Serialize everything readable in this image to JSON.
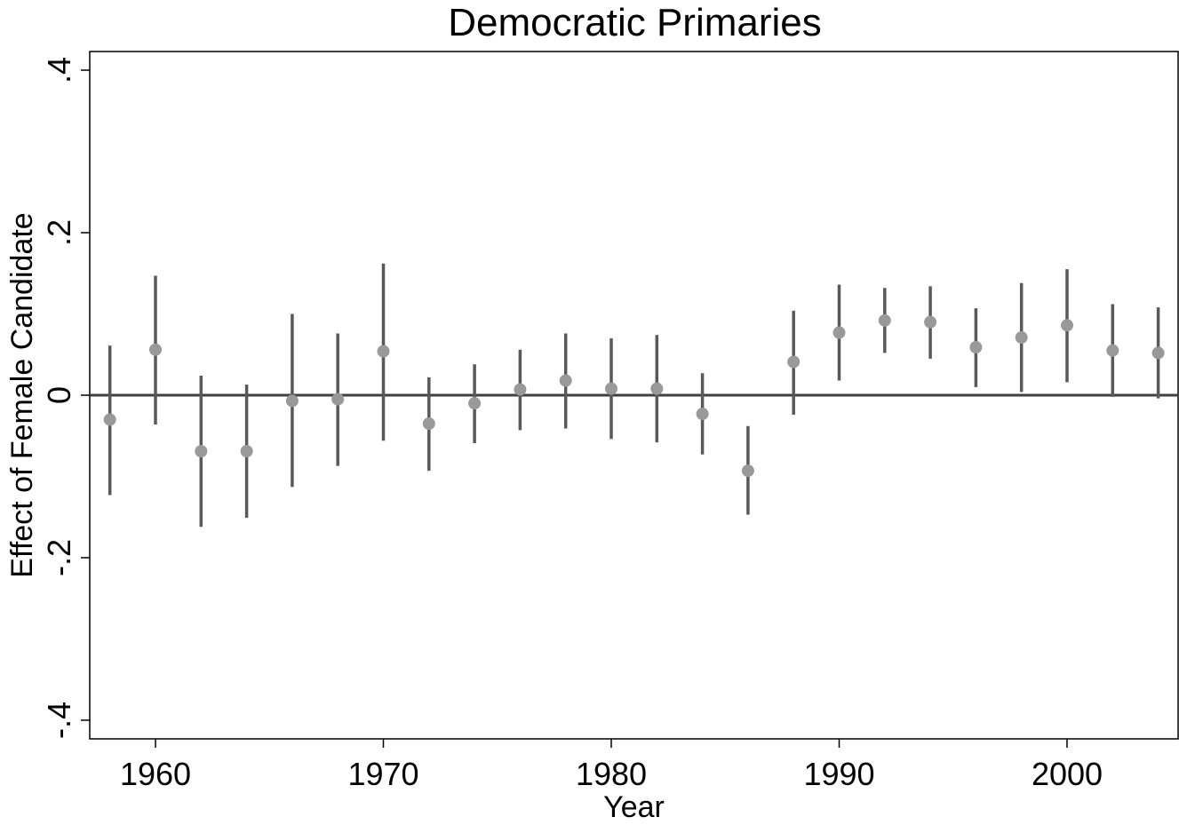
{
  "chart_data": {
    "type": "scatter",
    "title": "Democratic Primaries",
    "xlabel": "Year",
    "ylabel": "Effect of Female Candidate",
    "xlim": [
      1957.2,
      2004.5
    ],
    "ylim": [
      -0.42,
      0.42
    ],
    "x_ticks": [
      1960,
      1970,
      1980,
      1990,
      2000
    ],
    "x_tick_labels": [
      "1960",
      "1970",
      "1980",
      "1990",
      "2000"
    ],
    "y_ticks": [
      -0.4,
      -0.2,
      0,
      0.2,
      0.4
    ],
    "y_tick_labels": [
      "-.4",
      "-.2",
      "0",
      ".2",
      ".4"
    ],
    "reference_line_y": 0,
    "grid": false,
    "legend": "none",
    "series": [
      {
        "style": "point estimate with confidence interval bars",
        "points": [
          {
            "x": 1958,
            "y": -0.03,
            "lo": -0.123,
            "hi": 0.061
          },
          {
            "x": 1960,
            "y": 0.056,
            "lo": -0.036,
            "hi": 0.147
          },
          {
            "x": 1962,
            "y": -0.069,
            "lo": -0.162,
            "hi": 0.024
          },
          {
            "x": 1964,
            "y": -0.069,
            "lo": -0.151,
            "hi": 0.013
          },
          {
            "x": 1966,
            "y": -0.007,
            "lo": -0.113,
            "hi": 0.1
          },
          {
            "x": 1968,
            "y": -0.005,
            "lo": -0.087,
            "hi": 0.076
          },
          {
            "x": 1970,
            "y": 0.054,
            "lo": -0.056,
            "hi": 0.162
          },
          {
            "x": 1972,
            "y": -0.035,
            "lo": -0.093,
            "hi": 0.022
          },
          {
            "x": 1974,
            "y": -0.01,
            "lo": -0.059,
            "hi": 0.038
          },
          {
            "x": 1976,
            "y": 0.007,
            "lo": -0.043,
            "hi": 0.056
          },
          {
            "x": 1978,
            "y": 0.018,
            "lo": -0.041,
            "hi": 0.076
          },
          {
            "x": 1980,
            "y": 0.008,
            "lo": -0.054,
            "hi": 0.07
          },
          {
            "x": 1982,
            "y": 0.008,
            "lo": -0.058,
            "hi": 0.074
          },
          {
            "x": 1984,
            "y": -0.023,
            "lo": -0.073,
            "hi": 0.027
          },
          {
            "x": 1986,
            "y": -0.093,
            "lo": -0.147,
            "hi": -0.038
          },
          {
            "x": 1988,
            "y": 0.041,
            "lo": -0.024,
            "hi": 0.104
          },
          {
            "x": 1990,
            "y": 0.077,
            "lo": 0.018,
            "hi": 0.136
          },
          {
            "x": 1992,
            "y": 0.092,
            "lo": 0.052,
            "hi": 0.132
          },
          {
            "x": 1994,
            "y": 0.09,
            "lo": 0.045,
            "hi": 0.134
          },
          {
            "x": 1996,
            "y": 0.059,
            "lo": 0.01,
            "hi": 0.107
          },
          {
            "x": 1998,
            "y": 0.071,
            "lo": 0.004,
            "hi": 0.138
          },
          {
            "x": 2000,
            "y": 0.086,
            "lo": 0.016,
            "hi": 0.155
          },
          {
            "x": 2002,
            "y": 0.055,
            "lo": -0.002,
            "hi": 0.112
          },
          {
            "x": 2004,
            "y": 0.052,
            "lo": -0.004,
            "hi": 0.108
          }
        ]
      }
    ],
    "colors": {
      "point": "#999999",
      "interval": "#595959",
      "zero_line": "#404040",
      "frame": "#000000"
    }
  }
}
